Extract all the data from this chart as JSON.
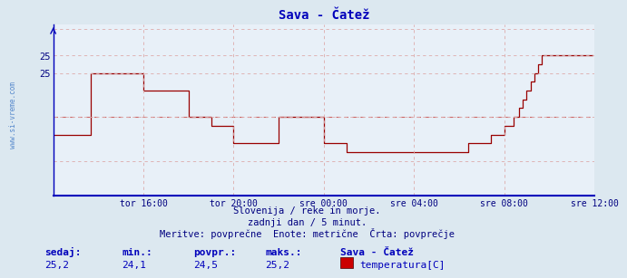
{
  "title": "Sava - Čatež",
  "bg_color": "#dce8f0",
  "plot_bg_color": "#e8f0f8",
  "line_color": "#990000",
  "avg_line_color": "#cc6666",
  "axis_color": "#0000bb",
  "grid_color": "#ddaaaa",
  "text_color": "#000080",
  "subtitle1": "Slovenija / reke in morje.",
  "subtitle2": "zadnji dan / 5 minut.",
  "subtitle3": "Meritve: povprečne  Enote: metrične  Črta: povprečje",
  "legend_station": "Sava - Čatež",
  "legend_series": "temperatura[C]",
  "label_sedaj": "sedaj:",
  "label_min": "min.:",
  "label_povpr": "povpr.:",
  "label_maks": "maks.:",
  "val_sedaj": "25,2",
  "val_min": "24,1",
  "val_povpr": "24,5",
  "val_maks": "25,2",
  "ylabel_text": "www.si-vreme.com",
  "xtick_labels": [
    "tor 16:00",
    "tor 20:00",
    "sre 00:00",
    "sre 04:00",
    "sre 08:00",
    "sre 12:00"
  ],
  "xtick_positions": [
    48,
    96,
    144,
    192,
    240,
    288
  ],
  "ytick_values": [
    25.0,
    25.2
  ],
  "ytick_labels": [
    "25",
    "25"
  ],
  "ymin": 23.6,
  "ymax": 25.55,
  "avg_value": 24.5,
  "temperature_data": [
    24.3,
    24.3,
    24.3,
    24.3,
    24.3,
    24.3,
    24.3,
    24.3,
    24.3,
    24.3,
    24.3,
    24.3,
    24.3,
    24.3,
    24.3,
    24.3,
    24.3,
    24.3,
    24.3,
    24.3,
    25.0,
    25.0,
    25.0,
    25.0,
    25.0,
    25.0,
    25.0,
    25.0,
    25.0,
    25.0,
    25.0,
    25.0,
    25.0,
    25.0,
    25.0,
    25.0,
    25.0,
    25.0,
    25.0,
    25.0,
    25.0,
    25.0,
    25.0,
    25.0,
    25.0,
    25.0,
    25.0,
    25.0,
    24.8,
    24.8,
    24.8,
    24.8,
    24.8,
    24.8,
    24.8,
    24.8,
    24.8,
    24.8,
    24.8,
    24.8,
    24.8,
    24.8,
    24.8,
    24.8,
    24.8,
    24.8,
    24.8,
    24.8,
    24.8,
    24.8,
    24.8,
    24.8,
    24.5,
    24.5,
    24.5,
    24.5,
    24.5,
    24.5,
    24.5,
    24.5,
    24.5,
    24.5,
    24.5,
    24.5,
    24.4,
    24.4,
    24.4,
    24.4,
    24.4,
    24.4,
    24.4,
    24.4,
    24.4,
    24.4,
    24.4,
    24.4,
    24.2,
    24.2,
    24.2,
    24.2,
    24.2,
    24.2,
    24.2,
    24.2,
    24.2,
    24.2,
    24.2,
    24.2,
    24.2,
    24.2,
    24.2,
    24.2,
    24.2,
    24.2,
    24.2,
    24.2,
    24.2,
    24.2,
    24.2,
    24.2,
    24.5,
    24.5,
    24.5,
    24.5,
    24.5,
    24.5,
    24.5,
    24.5,
    24.5,
    24.5,
    24.5,
    24.5,
    24.5,
    24.5,
    24.5,
    24.5,
    24.5,
    24.5,
    24.5,
    24.5,
    24.5,
    24.5,
    24.5,
    24.5,
    24.2,
    24.2,
    24.2,
    24.2,
    24.2,
    24.2,
    24.2,
    24.2,
    24.2,
    24.2,
    24.2,
    24.2,
    24.1,
    24.1,
    24.1,
    24.1,
    24.1,
    24.1,
    24.1,
    24.1,
    24.1,
    24.1,
    24.1,
    24.1,
    24.1,
    24.1,
    24.1,
    24.1,
    24.1,
    24.1,
    24.1,
    24.1,
    24.1,
    24.1,
    24.1,
    24.1,
    24.1,
    24.1,
    24.1,
    24.1,
    24.1,
    24.1,
    24.1,
    24.1,
    24.1,
    24.1,
    24.1,
    24.1,
    24.1,
    24.1,
    24.1,
    24.1,
    24.1,
    24.1,
    24.1,
    24.1,
    24.1,
    24.1,
    24.1,
    24.1,
    24.1,
    24.1,
    24.1,
    24.1,
    24.1,
    24.1,
    24.1,
    24.1,
    24.1,
    24.1,
    24.1,
    24.1,
    24.1,
    24.1,
    24.1,
    24.1,
    24.1,
    24.2,
    24.2,
    24.2,
    24.2,
    24.2,
    24.2,
    24.2,
    24.2,
    24.2,
    24.2,
    24.2,
    24.2,
    24.3,
    24.3,
    24.3,
    24.3,
    24.3,
    24.3,
    24.3,
    24.4,
    24.4,
    24.4,
    24.4,
    24.4,
    24.5,
    24.5,
    24.5,
    24.6,
    24.6,
    24.7,
    24.7,
    24.8,
    24.8,
    24.9,
    24.9,
    25.0,
    25.0,
    25.1,
    25.1,
    25.2,
    25.2,
    25.2,
    25.2,
    25.2,
    25.2,
    25.2,
    25.2,
    25.2,
    25.2,
    25.2,
    25.2,
    25.2,
    25.2,
    25.2,
    25.2,
    25.2,
    25.2,
    25.2,
    25.2,
    25.2,
    25.2,
    25.2,
    25.2,
    25.2,
    25.2,
    25.2,
    25.2
  ]
}
